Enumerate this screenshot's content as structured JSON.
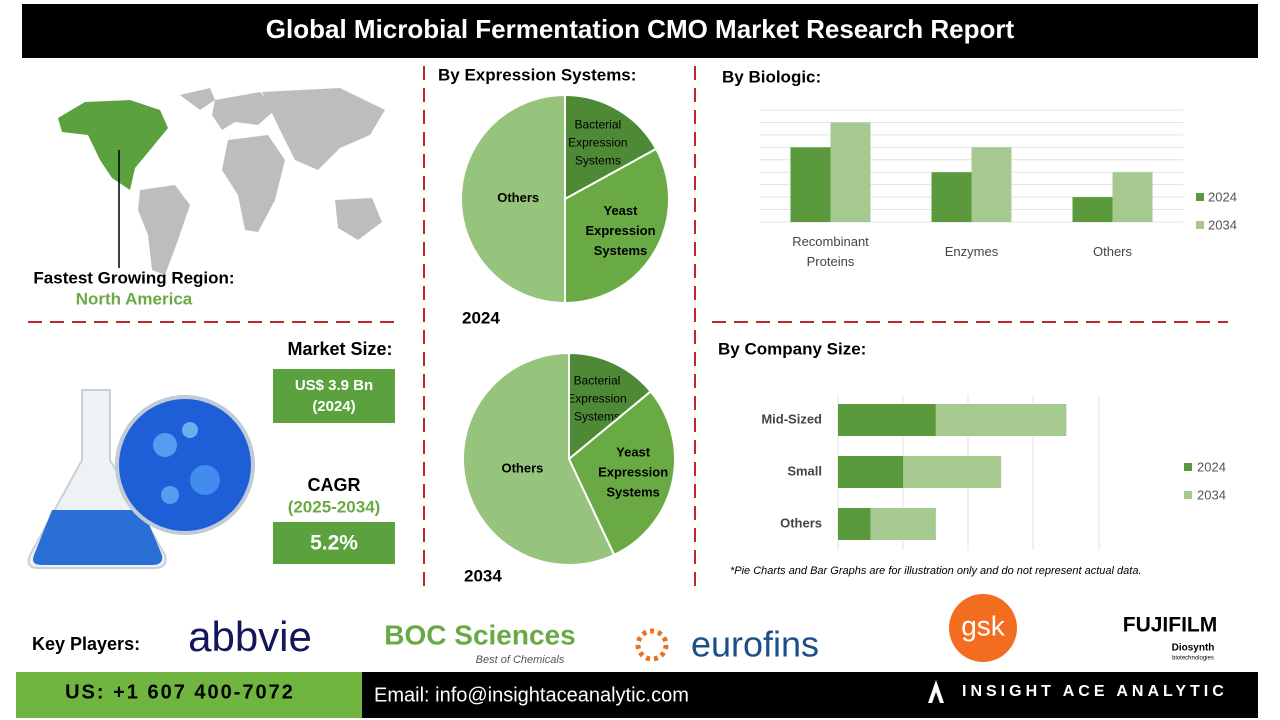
{
  "header": {
    "title": "Global Microbial Fermentation CMO Market Research Report"
  },
  "region": {
    "label": "Fastest Growing Region:",
    "value": "North America"
  },
  "market": {
    "size_label": "Market Size:",
    "size_value": "US$ 3.9 Bn",
    "size_year": "(2024)",
    "cagr_label": "CAGR",
    "cagr_period": "(2025-2034)",
    "cagr_value": "5.2%"
  },
  "chart_data": [
    {
      "type": "pie",
      "title": "By Expression Systems:",
      "label": "2024",
      "categories": [
        "Bacterial Expression Systems",
        "Yeast Expression Systems",
        "Others"
      ],
      "values": [
        17,
        33,
        50
      ],
      "colors": [
        "#4e8a35",
        "#6aaa45",
        "#96c47c"
      ]
    },
    {
      "type": "pie",
      "label": "2034",
      "categories": [
        "Bacterial Expression Systems",
        "Yeast Expression Systems",
        "Others"
      ],
      "values": [
        14,
        29,
        57
      ],
      "colors": [
        "#4e8a35",
        "#6aaa45",
        "#96c47c"
      ]
    },
    {
      "type": "bar",
      "title": "By  Biologic:",
      "categories": [
        "Recombinant Proteins",
        "Enzymes",
        "Others"
      ],
      "series": [
        {
          "name": "2024",
          "color": "#5a9a3c",
          "values": [
            6,
            4,
            2
          ]
        },
        {
          "name": "2034",
          "color": "#a5c98e",
          "values": [
            8,
            6,
            4
          ]
        }
      ],
      "ylim": [
        0,
        9
      ]
    },
    {
      "type": "hbar-stacked",
      "title": "By Company Size:",
      "categories": [
        "Mid-Sized",
        "Small",
        "Others"
      ],
      "series": [
        {
          "name": "2024",
          "color": "#5a9a3c",
          "values": [
            1.5,
            1,
            0.5
          ]
        },
        {
          "name": "2034",
          "color": "#a5c98e",
          "values": [
            2,
            1.5,
            1
          ]
        }
      ],
      "xlim": [
        0,
        4
      ]
    }
  ],
  "note": "*Pie Charts and Bar Graphs are for illustration only and do not represent actual data.",
  "key_players": {
    "label": "Key Players:",
    "logos": [
      "abbvie",
      "BOC Sciences",
      "Best of Chemicals",
      "eurofins",
      "gsk",
      "FUJIFILM",
      "Diosynth",
      "biotechnologies"
    ]
  },
  "footer": {
    "phone": "US: +1 607 400-7072",
    "email": "Email: info@insightaceanalytic.com",
    "brand": "INSIGHT ACE ANALYTIC"
  }
}
